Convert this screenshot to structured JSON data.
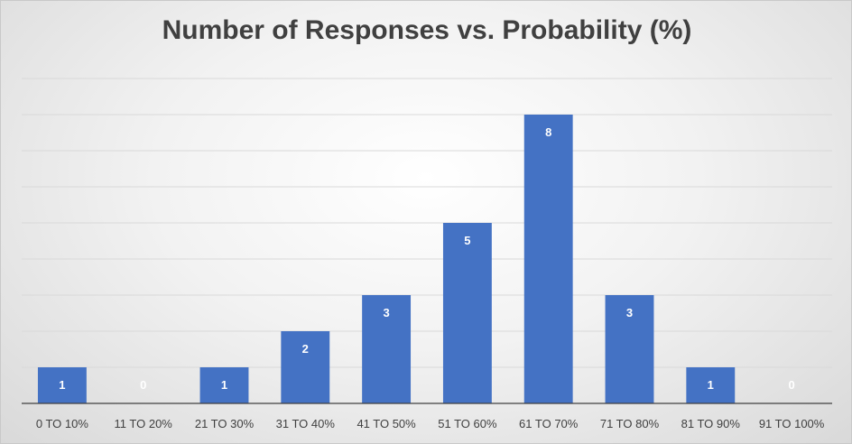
{
  "chart_data": {
    "type": "bar",
    "title": "Number of Responses vs. Probability (%)",
    "xlabel": "",
    "ylabel": "",
    "categories": [
      "0 TO 10%",
      "11 TO 20%",
      "21 TO 30%",
      "31 TO 40%",
      "41 TO 50%",
      "51 TO 60%",
      "61 TO 70%",
      "71 TO 80%",
      "81 TO 90%",
      "91 TO 100%"
    ],
    "values": [
      1,
      0,
      1,
      2,
      3,
      5,
      8,
      3,
      1,
      0
    ],
    "ylim": [
      0,
      9
    ],
    "grid": true,
    "data_labels": true,
    "legend": "none",
    "colors": {
      "bar": "#4472c4",
      "grid": "#d9d9d9",
      "axis": "#404040",
      "data_label": "#ffffff",
      "title": "#404040"
    }
  }
}
